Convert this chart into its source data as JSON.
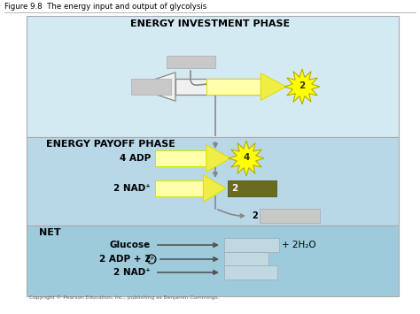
{
  "figure_title": "Figure 9.8  The energy input and output of glycolysis",
  "copyright": "Copyright © Pearson Education, Inc., publishing as Benjamin Cummings.",
  "investment_title": "ENERGY INVESTMENT PHASE",
  "payoff_title": "ENERGY PAYOFF PHASE",
  "net_title": "NET",
  "label_4adp": "4 ADP",
  "label_2nad": "2 NAD⁺",
  "label_glucose": "Glucose",
  "label_2adp": "2 ADP + 2",
  "label_pi": "P",
  "label_pi_sub": "i",
  "label_2nad_net": "2 NAD⁺",
  "label_2h2o": "+ 2H₂O",
  "label_4": "4",
  "label_2": "2",
  "burst_label_inv": "2",
  "burst_label_pay": "4",
  "bg_white": "#ffffff",
  "inv_bg": "#d4eaf2",
  "pay_bg": "#b8d8e8",
  "net_bg": "#9ecbdc",
  "gray_box": "#c8c8c8",
  "gray_box_edge": "#aaaaaa",
  "yellow_light": "#ffffaa",
  "yellow_mid": "#eeee44",
  "yellow_dark": "#dddd00",
  "burst_yellow": "#ffff00",
  "burst_edge": "#bbaa00",
  "olive_dark": "#6b6b20",
  "olive_edge": "#555510",
  "outline_arrow_fc": "#f0f0f0",
  "outline_arrow_ec": "#888888",
  "net_box_fc": "#c0d8e0",
  "net_box_ec": "#99aabb",
  "arrow_ec": "#666666",
  "vert_line_color": "#888888",
  "section_edge": "#aaaaaa",
  "text_dark": "#111111",
  "text_bold_color": "#000000"
}
